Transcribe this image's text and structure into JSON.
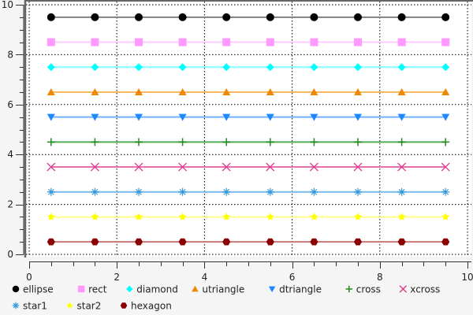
{
  "chart_data": {
    "type": "line",
    "xlim": [
      0,
      10
    ],
    "ylim": [
      0,
      10
    ],
    "x_ticks": [
      "0",
      "2",
      "4",
      "6",
      "8",
      "10"
    ],
    "y_ticks": [
      "0",
      "2",
      "4",
      "6",
      "8",
      "10"
    ],
    "grid": true,
    "legend_position": "bottom",
    "x": [
      0.5,
      1.5,
      2.5,
      3.5,
      4.5,
      5.5,
      6.5,
      7.5,
      8.5,
      9.5
    ],
    "series": [
      {
        "name": "ellipse",
        "marker": "ellipse",
        "y": 9.5,
        "color": "#000000",
        "line_color": "#808080"
      },
      {
        "name": "rect",
        "marker": "rect",
        "y": 8.5,
        "color": "#ff99ff",
        "line_color": "#ffccff"
      },
      {
        "name": "diamond",
        "marker": "diamond",
        "y": 7.5,
        "color": "#00ffff",
        "line_color": "#80ffff"
      },
      {
        "name": "utriangle",
        "marker": "utriangle",
        "y": 6.5,
        "color": "#ee8800",
        "line_color": "#f5b860"
      },
      {
        "name": "dtriangle",
        "marker": "dtriangle",
        "y": 5.5,
        "color": "#1e88ff",
        "line_color": "#70b0ff"
      },
      {
        "name": "cross",
        "marker": "cross",
        "y": 4.5,
        "color": "#228b22",
        "line_color": "#55aa55"
      },
      {
        "name": "xcross",
        "marker": "xcross",
        "y": 3.5,
        "color": "#e0338c",
        "line_color": "#e870b0"
      },
      {
        "name": "star1",
        "marker": "star1",
        "y": 2.5,
        "color": "#3399dd",
        "line_color": "#77bbee"
      },
      {
        "name": "star2",
        "marker": "star2",
        "y": 1.5,
        "color": "#ffff00",
        "line_color": "#ffff88"
      },
      {
        "name": "hexagon",
        "marker": "hexagon",
        "y": 0.5,
        "color": "#8b0000",
        "line_color": "#c87878"
      }
    ]
  }
}
